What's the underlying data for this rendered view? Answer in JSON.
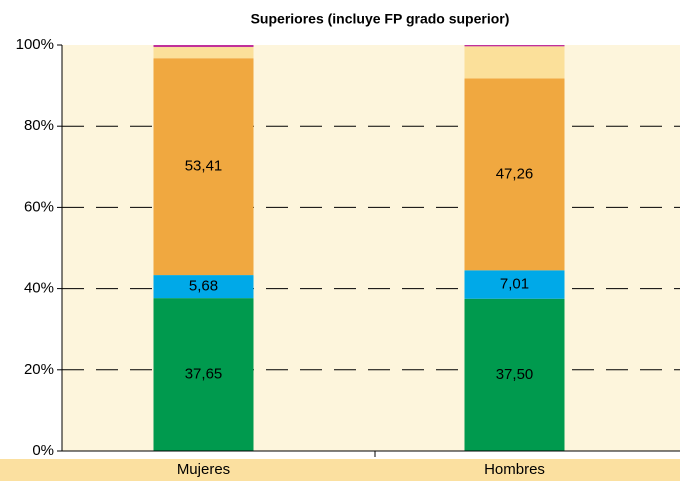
{
  "chart_data": {
    "type": "bar",
    "stacked": true,
    "title": "Superiores (incluye FP grado superior)",
    "categories": [
      "Mujeres",
      "Hombres"
    ],
    "series": [
      {
        "color": "#009a4e",
        "values": [
          37.65,
          37.5
        ],
        "value_labels": [
          "37,65",
          "37,50"
        ]
      },
      {
        "color": "#00a9e8",
        "values": [
          5.68,
          7.01
        ],
        "value_labels": [
          "5,68",
          "7,01"
        ]
      },
      {
        "color": "#f0a840",
        "values": [
          53.41,
          47.26
        ],
        "value_labels": [
          "53,41",
          "47,26"
        ]
      },
      {
        "color": "#fbe09a",
        "values": [
          2.76,
          7.9
        ]
      },
      {
        "color": "#c0309a",
        "values": [
          0.5,
          0.33
        ]
      }
    ],
    "ylim": [
      0,
      100
    ],
    "yticks": [
      {
        "value": 0,
        "label": "0%"
      },
      {
        "value": 20,
        "label": "20%"
      },
      {
        "value": 40,
        "label": "40%"
      },
      {
        "value": 60,
        "label": "60%"
      },
      {
        "value": 80,
        "label": "80%"
      },
      {
        "value": 100,
        "label": "100%"
      }
    ],
    "grid": true
  }
}
